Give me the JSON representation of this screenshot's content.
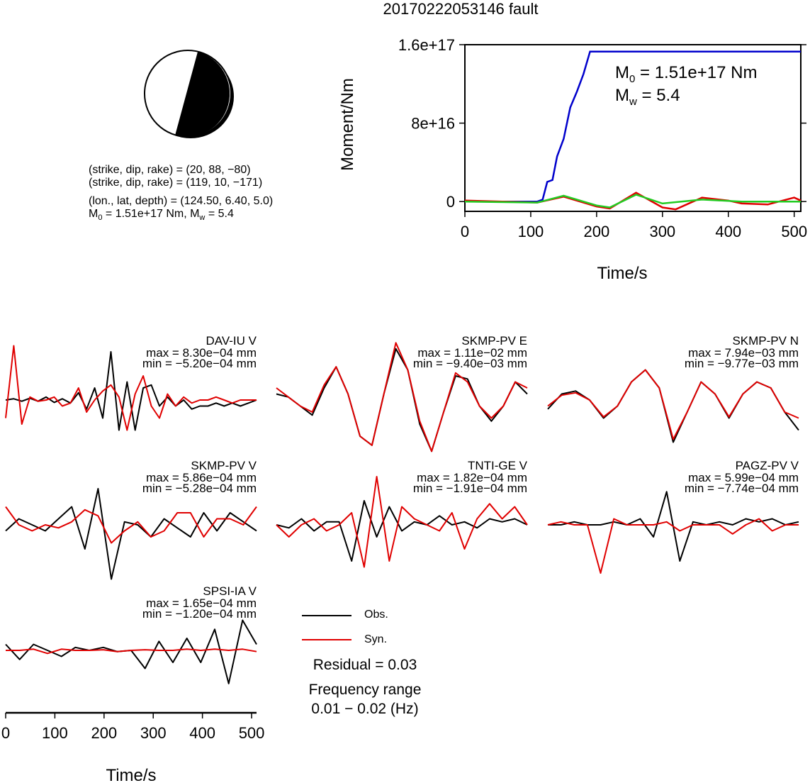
{
  "title": "20170222053146 fault",
  "mechanism": {
    "plane1": "(strike, dip, rake) = (20, 88, −80)",
    "plane2": "(strike, dip, rake) = (119, 10, −171)",
    "location": "(lon., lat, depth) = (124.50, 6.40, 5.0)",
    "moment_line": "M0 = 1.51e+17 Nm, Mw = 5.4"
  },
  "legend": {
    "obs_label": "Obs.",
    "syn_label": "Syn.",
    "residual": "Residual = 0.03",
    "freq_title": "Frequency range",
    "freq_value": "0.01 − 0.02 (Hz)"
  },
  "colors": {
    "observed": "#000000",
    "synthetic": "#e00000",
    "moment": "#0000cc",
    "green": "#22cc22"
  },
  "chart_data": [
    {
      "type": "line",
      "name": "moment-rate",
      "xlabel": "Time/s",
      "ylabel": "Moment/Nm",
      "xlim": [
        0,
        510
      ],
      "ylim": [
        -1e+16,
        1.6e+17
      ],
      "xticks": [
        0,
        100,
        200,
        300,
        400,
        500
      ],
      "yticks": [
        0,
        8e+16,
        1.6e+17
      ],
      "ytick_labels": [
        "0",
        "8e+16",
        "1.6e+17"
      ],
      "annotation": [
        "M0 = 1.51e+17 Nm",
        "Mw = 5.4"
      ],
      "series": [
        {
          "color": "#0000cc",
          "x": [
            0,
            110,
            118,
            125,
            133,
            140,
            150,
            160,
            170,
            180,
            190,
            510
          ],
          "y": [
            0,
            0,
            2000000000000000.0,
            2e+16,
            2.2e+16,
            4.6e+16,
            6.4e+16,
            9.6e+16,
            1.12e+17,
            1.3e+17,
            1.53e+17,
            1.53e+17
          ]
        },
        {
          "color": "#e00000",
          "x": [
            0,
            110,
            150,
            200,
            220,
            260,
            300,
            320,
            360,
            400,
            420,
            460,
            500,
            510
          ],
          "y": [
            1000000000000000.0,
            -1000000000000000.0,
            5000000000000000.0,
            -5000000000000000.0,
            -7000000000000000.0,
            9000000000000000.0,
            -6000000000000000.0,
            -8000000000000000.0,
            4000000000000000.0,
            1000000000000000.0,
            -2000000000000000.0,
            -3000000000000000.0,
            4000000000000000.0,
            1000000000000000.0
          ]
        },
        {
          "color": "#22cc22",
          "x": [
            0,
            110,
            150,
            200,
            220,
            260,
            300,
            360,
            420,
            510
          ],
          "y": [
            0,
            -1000000000000000.0,
            6000000000000000.0,
            -4000000000000000.0,
            -6000000000000000.0,
            7000000000000000.0,
            -2000000000000000.0,
            2000000000000000.0,
            0,
            0
          ]
        }
      ]
    },
    {
      "type": "line",
      "name": "waveform-fits",
      "xlabel": "Time/s",
      "xlim": [
        0,
        510
      ],
      "xticks": [
        0,
        100,
        200,
        300,
        400,
        500
      ],
      "traces": [
        {
          "label": "DAV-IU V",
          "max": "max = 8.30e−04 mm",
          "min": "min = −5.20e−04 mm",
          "obs": [
            0,
            0.02,
            -0.02,
            0.03,
            -0.02,
            0.05,
            -0.04,
            0.02,
            -0.05,
            0.12,
            -0.15,
            0.2,
            -0.3,
            0.8,
            -0.5,
            0.3,
            -0.5,
            0.2,
            0.25,
            -0.1,
            0.05,
            -0.1,
            0.0,
            -0.15,
            -0.1,
            -0.1,
            -0.05,
            -0.1,
            -0.05,
            -0.1,
            -0.05,
            0
          ],
          "syn": [
            -0.3,
            0.9,
            -0.4,
            0.05,
            -0.02,
            0.0,
            0.05,
            -0.1,
            -0.05,
            0.2,
            -0.2,
            0.0,
            0.15,
            0.25,
            0.05,
            -0.5,
            0.1,
            0.4,
            -0.1,
            -0.3,
            0.1,
            -0.1,
            0.05,
            -0.05,
            0.0,
            0.0,
            0.05,
            0.0,
            -0.05,
            0.0,
            0.0,
            0
          ]
        },
        {
          "label": "SKMP-PV E",
          "max": "max = 1.11e−02 mm",
          "min": "min = −9.40e−03 mm",
          "obs": [
            0.1,
            0.05,
            -0.1,
            -0.25,
            0.2,
            0.55,
            0.1,
            -0.6,
            -0.75,
            0.1,
            0.85,
            0.5,
            -0.4,
            -0.85,
            -0.2,
            0.4,
            0.35,
            -0.1,
            -0.35,
            -0.1,
            0.3,
            0.1
          ],
          "syn": [
            0.2,
            0.05,
            -0.1,
            -0.2,
            0.25,
            0.55,
            0.1,
            -0.6,
            -0.75,
            0.1,
            0.95,
            0.5,
            -0.35,
            -0.85,
            -0.2,
            0.45,
            0.3,
            -0.1,
            -0.3,
            -0.1,
            0.3,
            0.2
          ]
        },
        {
          "label": "SKMP-PV N",
          "max": "max = 7.94e−03 mm",
          "min": "min = −9.77e−03 mm",
          "obs": [
            -0.15,
            0.1,
            0.15,
            0.0,
            -0.3,
            -0.1,
            0.3,
            0.5,
            0.2,
            -0.7,
            -0.2,
            0.3,
            0.1,
            -0.3,
            0.1,
            0.3,
            0.2,
            -0.2,
            -0.5
          ],
          "syn": [
            -0.1,
            0.08,
            0.12,
            0.0,
            -0.28,
            -0.1,
            0.3,
            0.5,
            0.2,
            -0.65,
            -0.2,
            0.3,
            0.1,
            -0.28,
            0.1,
            0.3,
            0.2,
            -0.2,
            -0.3
          ]
        },
        {
          "label": "SKMP-PV V",
          "max": "max = 5.86e−04 mm",
          "min": "min = −5.28e−04 mm",
          "obs": [
            -0.1,
            0.1,
            0.0,
            -0.1,
            0.1,
            0.3,
            -0.4,
            0.6,
            -0.9,
            0.05,
            0.0,
            -0.2,
            0.1,
            -0.05,
            -0.2,
            0.2,
            -0.1,
            0.2,
            0.05,
            -0.1
          ],
          "syn": [
            0.3,
            0.0,
            -0.1,
            0.0,
            -0.05,
            0.05,
            0.25,
            0.15,
            -0.3,
            -0.1,
            0.05,
            -0.2,
            -0.1,
            0.2,
            0.2,
            -0.2,
            0.1,
            0.1,
            0.0,
            0.3
          ]
        },
        {
          "label": "TNTI-GE V",
          "max": "max = 1.82e−04 mm",
          "min": "min = −1.91e−04 mm",
          "obs": [
            0.0,
            -0.05,
            0.1,
            -0.1,
            0.05,
            0.05,
            -0.6,
            0.4,
            -0.2,
            0.3,
            -0.1,
            0.05,
            0.0,
            0.15,
            0.0,
            0.05,
            -0.05,
            0.1,
            0.05,
            0.1,
            0.0
          ],
          "syn": [
            0.0,
            -0.2,
            0.0,
            0.1,
            -0.1,
            0.0,
            0.2,
            -0.7,
            0.8,
            -0.6,
            0.3,
            0.1,
            0.0,
            -0.1,
            0.2,
            -0.4,
            0.1,
            0.35,
            0.1,
            0.3,
            0.0
          ]
        },
        {
          "label": "PAGZ-PV V",
          "max": "max = 5.99e−04 mm",
          "min": "min = −7.74e−04 mm",
          "obs": [
            0.0,
            0.0,
            0.05,
            0.0,
            0.0,
            0.05,
            0.0,
            0.1,
            -0.2,
            0.55,
            -0.6,
            0.05,
            0.0,
            0.05,
            0.0,
            0.1,
            0.05,
            0.1,
            0.0,
            0.05
          ],
          "syn": [
            0.0,
            0.05,
            0.0,
            0.0,
            -0.8,
            0.1,
            0.0,
            0.0,
            0.0,
            0.05,
            -0.1,
            0.0,
            0.0,
            0.0,
            -0.15,
            0.0,
            0.1,
            -0.1,
            0.0,
            0.0
          ]
        },
        {
          "label": "SPSI-IA V",
          "max": "max = 1.65e−04 mm",
          "min": "min = −1.20e−04 mm",
          "obs": [
            0.1,
            -0.15,
            0.1,
            0.0,
            -0.1,
            0.05,
            0.0,
            0.05,
            -0.02,
            0.0,
            -0.3,
            0.15,
            -0.2,
            0.2,
            -0.2,
            0.35,
            -0.55,
            0.5,
            0.1
          ],
          "syn": [
            0.0,
            0.0,
            0.02,
            -0.05,
            0.02,
            0.0,
            0.0,
            0.01,
            -0.02,
            0.0,
            0.01,
            0.0,
            0.0,
            0.02,
            0.0,
            0.02,
            0.0,
            0.02,
            -0.02
          ]
        }
      ]
    }
  ]
}
